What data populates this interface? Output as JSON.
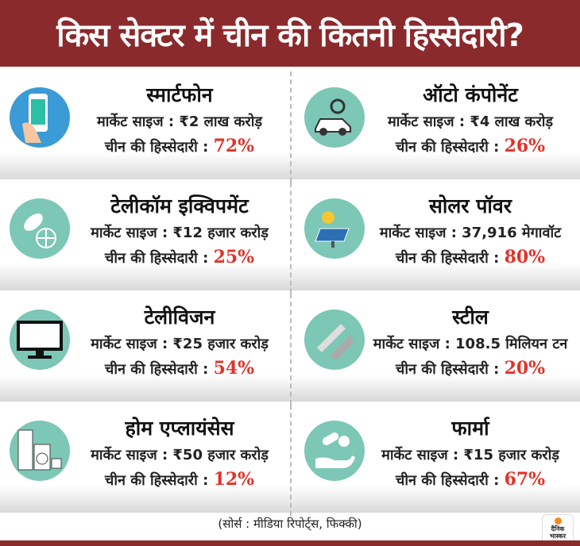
{
  "title": "किस सेक्टर में चीन की कितनी हिस्सेदारी?",
  "labels": {
    "market": "मार्केट साइज : ",
    "share": "चीन की हिस्सेदारी : "
  },
  "sectors": [
    {
      "name": "स्मार्टफोन",
      "size": "₹2 लाख करोड़",
      "share": "72%",
      "icon": "smartphone-icon"
    },
    {
      "name": "ऑटो कंपोनेंट",
      "size": "₹4 लाख करोड़",
      "share": "26%",
      "icon": "car-gear-icon"
    },
    {
      "name": "टेलीकॉम इक्विपमेंट",
      "size": "₹12 हजार करोड़",
      "share": "25%",
      "icon": "satellite-dish-icon"
    },
    {
      "name": "सोलर पॉवर",
      "size": "37,916 मेगावॉट",
      "share": "80%",
      "icon": "solar-panel-icon"
    },
    {
      "name": "टेलीविजन",
      "size": "₹25 हजार करोड़",
      "share": "54%",
      "icon": "television-icon"
    },
    {
      "name": "स्टील",
      "size": "108.5 मिलियन टन",
      "share": "20%",
      "icon": "steel-beams-icon"
    },
    {
      "name": "होम एप्लायंसेस",
      "size": "₹50 हजार करोड़",
      "share": "12%",
      "icon": "home-appliances-icon"
    },
    {
      "name": "फार्मा",
      "size": "₹15 हजार करोड़",
      "share": "67%",
      "icon": "pills-hand-icon"
    }
  ],
  "source": "(सोर्स : मीडिया रिपोर्ट्स, फिक्की)",
  "logo": "दैनिक भास्कर",
  "colors": {
    "header": "#8a2a2c",
    "accent": "#e2332a",
    "icon_bg": "#7cc7b5",
    "phone_bg": "#3b9bd6"
  }
}
